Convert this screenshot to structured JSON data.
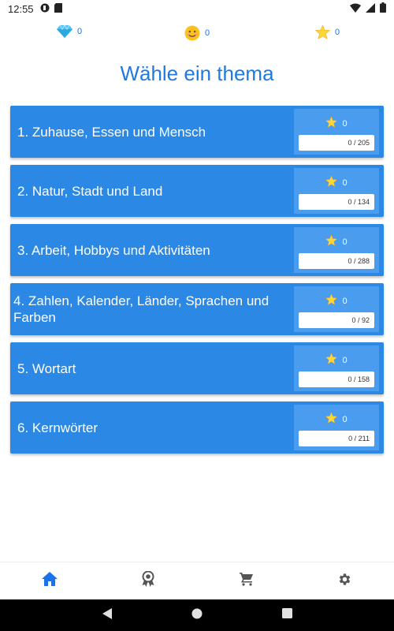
{
  "status_bar": {
    "time": "12:55"
  },
  "counters": {
    "gems": "0",
    "smiles": "0",
    "stars": "0"
  },
  "title": "Wähle ein thema",
  "topics": [
    {
      "label": "1. Zuhause, Essen und Mensch",
      "stars": "0",
      "progress_text": "0 / 205"
    },
    {
      "label": "2. Natur, Stadt und Land",
      "stars": "0",
      "progress_text": "0 / 134"
    },
    {
      "label": "3. Arbeit, Hobbys und Aktivitäten",
      "stars": "0",
      "progress_text": "0 / 288"
    },
    {
      "label": "4. Zahlen, Kalender, Länder, Sprachen und Farben",
      "stars": "0",
      "progress_text": "0 / 92"
    },
    {
      "label": "5. Wortart",
      "stars": "0",
      "progress_text": "0 / 158"
    },
    {
      "label": "6. Kernwörter",
      "stars": "0",
      "progress_text": "0 / 211"
    }
  ],
  "bottom_nav": {
    "items": [
      "home-icon",
      "award-icon",
      "cart-icon",
      "settings-icon"
    ],
    "active": "home-icon",
    "active_color": "#1a73e8",
    "inactive_color": "#555555"
  },
  "colors": {
    "card": "#2b88e4",
    "card_panel": "#4a9cee",
    "title": "#1f7ae0"
  }
}
